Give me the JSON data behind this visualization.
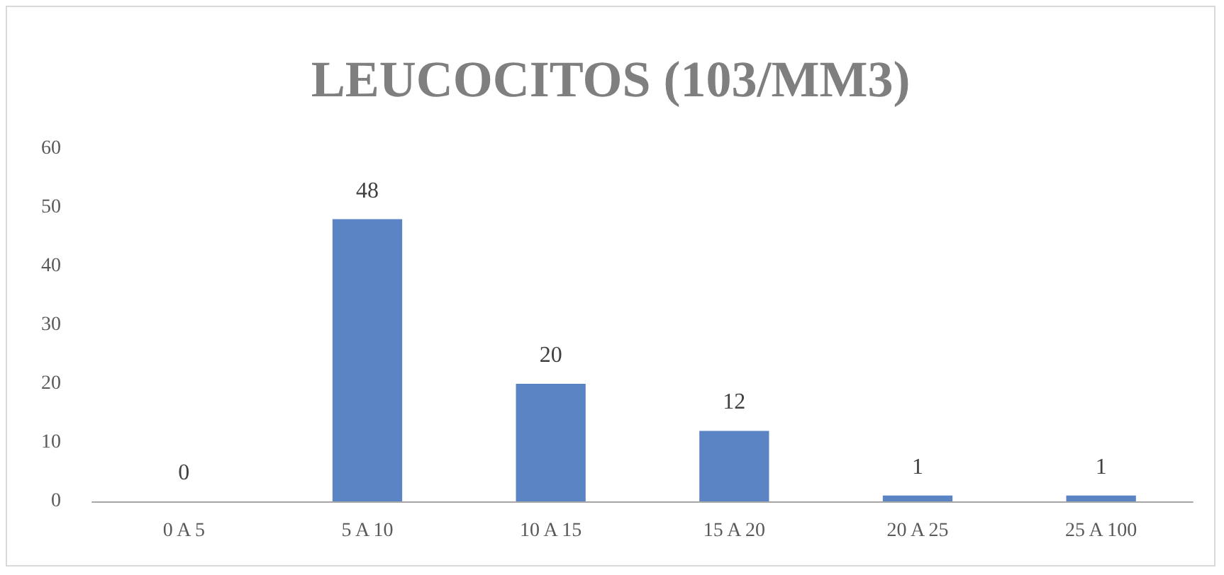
{
  "chart_data": {
    "type": "bar",
    "title": "LEUCOCITOS (103/MM3)",
    "categories": [
      "0 A 5",
      "5 A 10",
      "10 A 15",
      "15 A 20",
      "20 A 25",
      "25 A 100"
    ],
    "values": [
      0,
      48,
      20,
      12,
      1,
      1
    ],
    "color": "#5b84c4",
    "ylim": [
      0,
      60
    ],
    "yticks": [
      0,
      10,
      20,
      30,
      40,
      50,
      60
    ],
    "grid": false,
    "data_labels": true
  }
}
